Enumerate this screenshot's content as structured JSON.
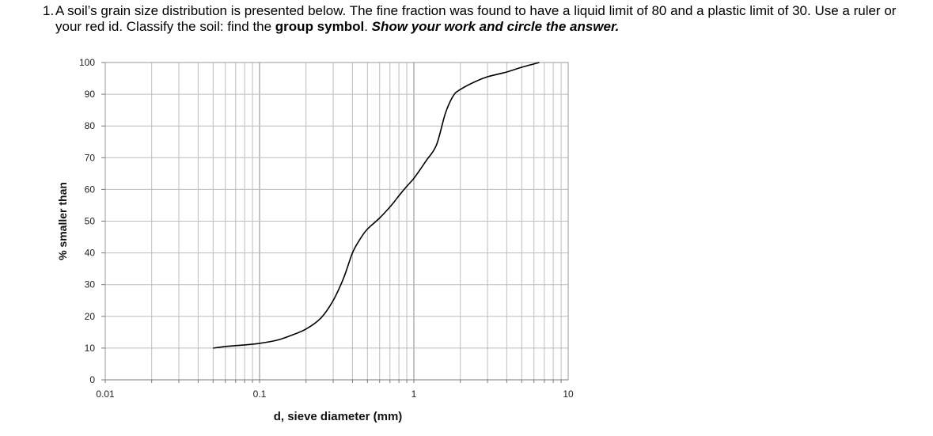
{
  "question": {
    "number": "1.",
    "text_intro": "A soil’s grain size distribution is presented below. The fine fraction was found to have a liquid limit of 80 and a plastic limit of 30. Use a ruler or your red id. Classify the soil: find the ",
    "bold_phrase": "group symbol",
    "sep": ". ",
    "bold_italic_phrase": "Show your work and circle the answer."
  },
  "chart_data": {
    "type": "line",
    "title": "",
    "xlabel": "d, sieve diameter (mm)",
    "ylabel": "% smaller than",
    "x_scale": "log",
    "xlim": [
      0.01,
      10
    ],
    "ylim": [
      0,
      100
    ],
    "x_tick_labels": [
      "0.01",
      "0.1",
      "1",
      "10"
    ],
    "x_ticks": [
      0.01,
      0.1,
      1,
      10
    ],
    "y_ticks": [
      0,
      10,
      20,
      30,
      40,
      50,
      60,
      70,
      80,
      90,
      100
    ],
    "y_tick_labels": [
      "0",
      "10",
      "20",
      "30",
      "40",
      "50",
      "60",
      "70",
      "80",
      "90",
      "100"
    ],
    "grid": true,
    "series": [
      {
        "x": [
          0.05,
          0.06,
          0.08,
          0.1,
          0.13,
          0.16,
          0.2,
          0.25,
          0.3,
          0.35,
          0.4,
          0.45,
          0.5,
          0.6,
          0.7,
          0.8,
          0.9,
          1.0,
          1.2,
          1.4,
          1.6,
          1.8,
          2.0,
          2.5,
          3.0,
          4.0,
          5.0,
          6.5
        ],
        "y": [
          10,
          10.5,
          11,
          11.5,
          12.5,
          14,
          16,
          19.5,
          25,
          32,
          40,
          44.5,
          47.5,
          51,
          54.5,
          58,
          61,
          63.5,
          69,
          74,
          84,
          89.5,
          91.5,
          94,
          95.5,
          97,
          98.5,
          100
        ]
      }
    ]
  }
}
